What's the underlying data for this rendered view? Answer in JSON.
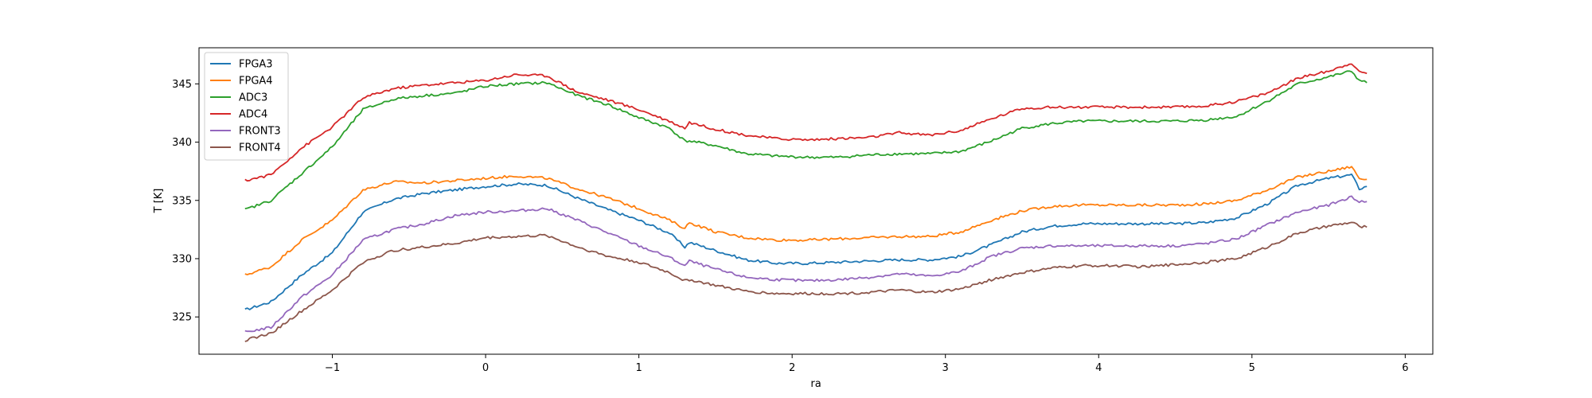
{
  "chart_data": {
    "type": "line",
    "title": "",
    "xlabel": "ra",
    "ylabel": "T [K]",
    "xlim": [
      -1.87,
      6.18
    ],
    "ylim": [
      321.8,
      348.1
    ],
    "xticks": [
      -1,
      0,
      1,
      2,
      3,
      4,
      5,
      6
    ],
    "yticks": [
      325,
      330,
      335,
      340,
      345
    ],
    "grid": false,
    "legend_position": "top-left",
    "x": [
      -1.57,
      -1.4,
      -1.2,
      -1.0,
      -0.8,
      -0.6,
      -0.4,
      -0.2,
      0.0,
      0.2,
      0.4,
      0.6,
      0.8,
      1.0,
      1.2,
      1.3,
      1.33,
      1.5,
      1.7,
      1.9,
      2.1,
      2.3,
      2.5,
      2.7,
      2.9,
      3.1,
      3.3,
      3.5,
      3.7,
      3.9,
      4.1,
      4.3,
      4.5,
      4.7,
      4.9,
      5.1,
      5.3,
      5.5,
      5.65,
      5.7,
      5.75
    ],
    "series": [
      {
        "name": "FPGA3",
        "color": "#1f77b4",
        "values": [
          325.6,
          326.3,
          328.6,
          330.5,
          334.0,
          335.1,
          335.6,
          335.9,
          336.2,
          336.4,
          336.3,
          335.2,
          334.2,
          333.3,
          332.2,
          331.0,
          331.4,
          330.7,
          329.9,
          329.6,
          329.6,
          329.7,
          329.8,
          329.9,
          329.9,
          330.2,
          331.2,
          332.3,
          332.8,
          333.0,
          333.0,
          333.0,
          333.0,
          333.1,
          333.5,
          334.7,
          336.3,
          336.9,
          337.2,
          336.0,
          336.2
        ]
      },
      {
        "name": "FPGA4",
        "color": "#ff7f0e",
        "values": [
          328.6,
          329.3,
          331.6,
          333.3,
          335.9,
          336.6,
          336.5,
          336.7,
          336.9,
          337.1,
          336.9,
          336.0,
          335.2,
          334.3,
          333.3,
          332.6,
          333.1,
          332.3,
          331.8,
          331.6,
          331.6,
          331.7,
          331.8,
          331.9,
          331.9,
          332.3,
          333.3,
          334.1,
          334.5,
          334.6,
          334.6,
          334.6,
          334.6,
          334.7,
          335.0,
          335.9,
          337.0,
          337.5,
          337.9,
          336.9,
          336.8
        ]
      },
      {
        "name": "ADC3",
        "color": "#2ca02c",
        "values": [
          334.2,
          335.0,
          337.3,
          339.6,
          342.8,
          343.7,
          344.0,
          344.2,
          344.8,
          345.0,
          345.1,
          344.0,
          343.2,
          342.1,
          341.2,
          340.1,
          340.1,
          339.7,
          339.0,
          338.8,
          338.7,
          338.7,
          338.9,
          339.0,
          339.0,
          339.2,
          340.1,
          341.2,
          341.6,
          341.8,
          341.8,
          341.8,
          341.8,
          341.9,
          342.2,
          343.5,
          345.0,
          345.6,
          346.1,
          345.3,
          345.1
        ]
      },
      {
        "name": "ADC4",
        "color": "#d62728",
        "values": [
          336.7,
          337.2,
          339.5,
          341.3,
          343.8,
          344.6,
          344.9,
          345.1,
          345.3,
          345.8,
          345.7,
          344.3,
          343.6,
          342.8,
          341.8,
          341.2,
          341.7,
          341.1,
          340.6,
          340.3,
          340.2,
          340.3,
          340.4,
          340.8,
          340.6,
          341.0,
          342.0,
          342.9,
          343.0,
          343.0,
          343.0,
          343.0,
          343.0,
          343.1,
          343.5,
          344.2,
          345.5,
          346.1,
          346.8,
          346.0,
          345.9
        ]
      },
      {
        "name": "FRONT3",
        "color": "#9467bd",
        "values": [
          323.7,
          324.1,
          326.7,
          328.6,
          331.6,
          332.5,
          333.0,
          333.7,
          334.0,
          334.1,
          334.3,
          333.3,
          332.2,
          331.1,
          330.1,
          329.4,
          329.8,
          329.1,
          328.4,
          328.2,
          328.1,
          328.2,
          328.4,
          328.7,
          328.5,
          328.9,
          330.2,
          330.9,
          331.1,
          331.1,
          331.1,
          331.1,
          331.1,
          331.3,
          331.7,
          332.9,
          334.0,
          334.6,
          335.3,
          334.9,
          334.9
        ]
      },
      {
        "name": "FRONT4",
        "color": "#8c564b",
        "values": [
          323.0,
          323.6,
          325.5,
          327.3,
          329.7,
          330.7,
          331.0,
          331.3,
          331.8,
          331.9,
          332.0,
          331.0,
          330.2,
          329.7,
          328.8,
          328.1,
          328.2,
          327.7,
          327.2,
          327.0,
          327.0,
          327.0,
          327.1,
          327.3,
          327.1,
          327.4,
          328.2,
          328.8,
          329.2,
          329.4,
          329.4,
          329.3,
          329.5,
          329.7,
          330.0,
          331.0,
          332.2,
          332.8,
          333.1,
          332.8,
          332.7
        ]
      }
    ]
  }
}
